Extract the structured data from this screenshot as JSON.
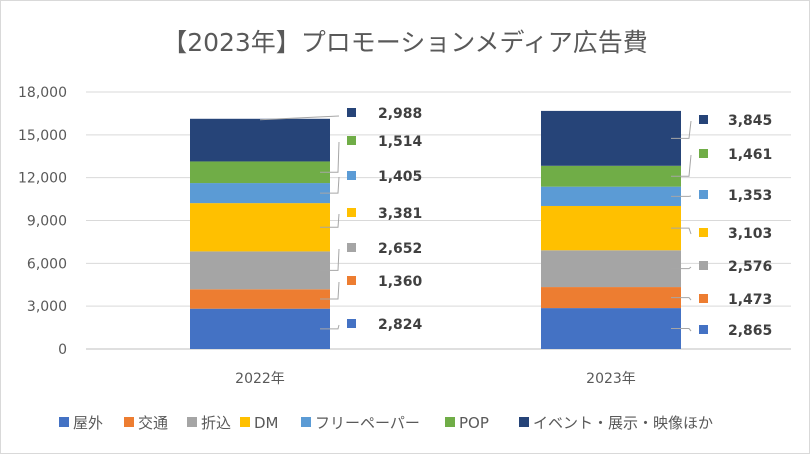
{
  "chart_data": {
    "type": "bar",
    "stacked": true,
    "title": "【2023年】プロモーションメディア広告費",
    "categories": [
      "2022年",
      "2023年"
    ],
    "ylim": [
      0,
      18000
    ],
    "yticks": [
      0,
      3000,
      6000,
      9000,
      12000,
      15000,
      18000
    ],
    "ytick_labels": [
      "0",
      "3,000",
      "6,000",
      "9,000",
      "12,000",
      "15,000",
      "18,000"
    ],
    "grid": true,
    "legend_position": "bottom",
    "series": [
      {
        "name": "屋外",
        "color": "#4472C4",
        "values": [
          2824,
          2865
        ],
        "labels": [
          "2,824",
          "2,865"
        ]
      },
      {
        "name": "交通",
        "color": "#ED7D31",
        "values": [
          1360,
          1473
        ],
        "labels": [
          "1,360",
          "1,473"
        ]
      },
      {
        "name": "折込",
        "color": "#A5A5A5",
        "values": [
          2652,
          2576
        ],
        "labels": [
          "2,652",
          "2,576"
        ]
      },
      {
        "name": "DM",
        "color": "#FFC000",
        "values": [
          3381,
          3103
        ],
        "labels": [
          "3,381",
          "3,103"
        ]
      },
      {
        "name": "フリーペーパー",
        "color": "#5B9BD5",
        "values": [
          1405,
          1353
        ],
        "labels": [
          "1,405",
          "1,353"
        ]
      },
      {
        "name": "POP",
        "color": "#70AD47",
        "values": [
          1514,
          1461
        ],
        "labels": [
          "1,514",
          "1,461"
        ]
      },
      {
        "name": "イベント・展示・映像ほか",
        "color": "#264478",
        "values": [
          2988,
          3845
        ],
        "labels": [
          "2,988",
          "3,845"
        ]
      }
    ]
  }
}
